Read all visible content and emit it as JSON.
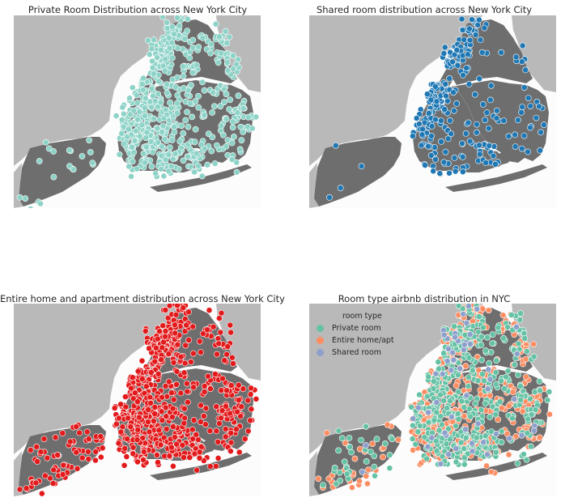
{
  "chart_data": [
    {
      "type": "scatter",
      "title": "Private Room Distribution across New York City",
      "series": [
        {
          "name": "Private room",
          "color": "#8dd3c7"
        }
      ],
      "background": "map of New York City (borough shapes)",
      "grid": false
    },
    {
      "type": "scatter",
      "title": "Shared room distribution across New York City",
      "series": [
        {
          "name": "Shared room",
          "color": "#1f78b4"
        }
      ],
      "background": "map of New York City (borough shapes)",
      "grid": false
    },
    {
      "type": "scatter",
      "title": "Entire home and apartment distribution across New York City",
      "series": [
        {
          "name": "Entire home/apt",
          "color": "#e31a1c"
        }
      ],
      "background": "map of New York City (borough shapes)",
      "grid": false
    },
    {
      "type": "scatter",
      "title": "Room type airbnb distribution in NYC",
      "legend_title": "room type",
      "legend_position": "top-left",
      "series": [
        {
          "name": "Private room",
          "color": "#66c2a5"
        },
        {
          "name": "Entire home/apt",
          "color": "#fc8d62"
        },
        {
          "name": "Shared room",
          "color": "#8da0cb"
        }
      ],
      "background": "map of New York City (borough shapes)",
      "grid": false
    }
  ]
}
